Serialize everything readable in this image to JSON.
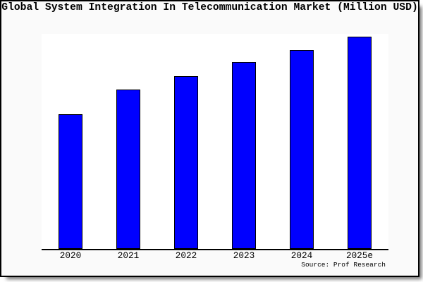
{
  "chart_data": {
    "type": "bar",
    "title": "Global System Integration In Telecommunication Market (Million USD)",
    "categories": [
      "2020",
      "2021",
      "2022",
      "2023",
      "2024",
      "2025e"
    ],
    "values": [
      63.3,
      75.1,
      81.4,
      88.0,
      93.7,
      100
    ],
    "value_unit": "relative bar height, percent of tallest (2025e) bar; no numeric value axis is shown in the figure",
    "xlabel": "",
    "ylabel": "",
    "grid": false,
    "legend": false,
    "colors": {
      "bar_fill": "#0000ff",
      "bar_border": "#000000",
      "axis": "#000000",
      "plot_background": "#ffffff",
      "frame_background": "#fafafa",
      "text": "#000000"
    },
    "source": "Source: Prof Research"
  }
}
